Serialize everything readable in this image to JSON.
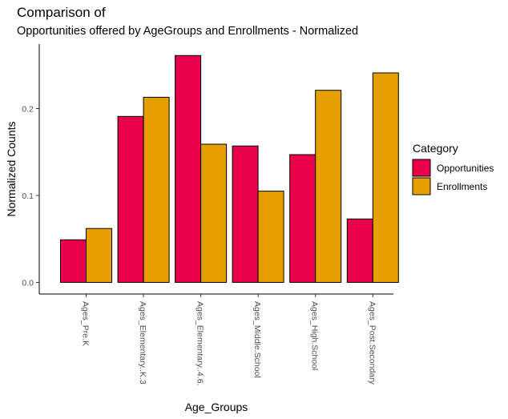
{
  "chart_data": {
    "type": "bar",
    "title": "Comparison of",
    "subtitle": "Opportunities offered by AgeGroups and Enrollments - Normalized",
    "xlabel": "Age_Groups",
    "ylabel": "Normalized Counts",
    "categories": [
      "Ages_Pre.K",
      "Ages_Elementary..K.3",
      "Ages_Elementary..4.6.",
      "Ages_Middle.School",
      "Ages_High.School",
      "Ages_Post.Secondary"
    ],
    "series": [
      {
        "name": "Opportunities",
        "color": "#E8004A",
        "values": [
          0.049,
          0.191,
          0.261,
          0.157,
          0.147,
          0.073
        ]
      },
      {
        "name": "Enrollments",
        "color": "#E69F00",
        "values": [
          0.062,
          0.213,
          0.159,
          0.105,
          0.221,
          0.241
        ]
      }
    ],
    "ylim": [
      0,
      0.27
    ],
    "yticks": [
      0.0,
      0.1,
      0.2
    ],
    "ytick_labels": [
      "0.0",
      "0.1",
      "0.2"
    ],
    "legend": {
      "title": "Category",
      "position": "right"
    },
    "grid": false
  }
}
